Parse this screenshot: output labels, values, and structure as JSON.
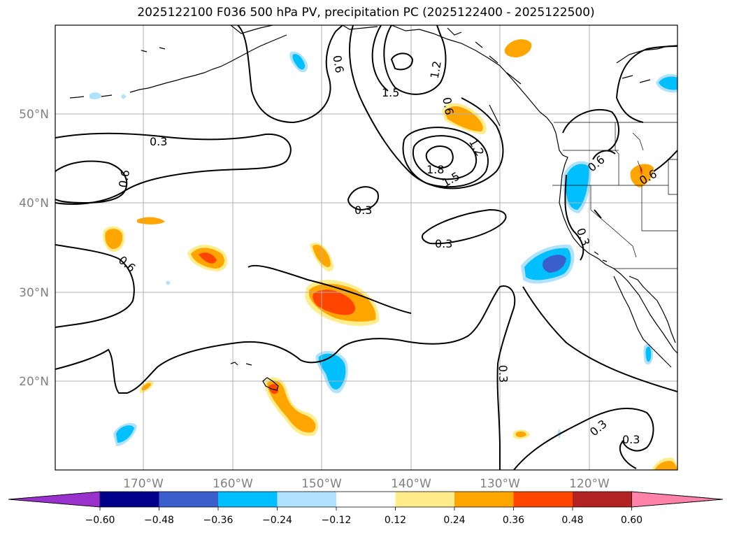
{
  "title": "2025122100 F036 500 hPa PV, precipitation PC (2025122400 - 2025122500)",
  "map": {
    "lat_labels": [
      "50°N",
      "40°N",
      "30°N",
      "20°N"
    ],
    "lon_labels": [
      "170°W",
      "160°W",
      "150°W",
      "140°W",
      "130°W",
      "120°W"
    ],
    "grid": true,
    "coastline_color": "#000000"
  },
  "contour_labels": [
    "0.3",
    "0.6",
    "0.6",
    "0.3",
    "0.6",
    "1.5",
    "1.2",
    "0.6",
    "1.2",
    "1.8",
    "1.5",
    "0.3",
    "0.3",
    "0.6",
    "0.6",
    "0.3",
    "0.3",
    "0.3",
    "0.3"
  ],
  "colorbar": {
    "ticks": [
      "−0.60",
      "−0.48",
      "−0.36",
      "−0.24",
      "−0.12",
      "0.12",
      "0.24",
      "0.36",
      "0.48",
      "0.60"
    ],
    "colors": [
      "#9932cc",
      "#00008b",
      "#3a5fcd",
      "#00bfff",
      "#b0e2ff",
      "#ffffff",
      "#ffec8b",
      "#ffa500",
      "#ff4500",
      "#b22222",
      "#ff82ab"
    ]
  }
}
